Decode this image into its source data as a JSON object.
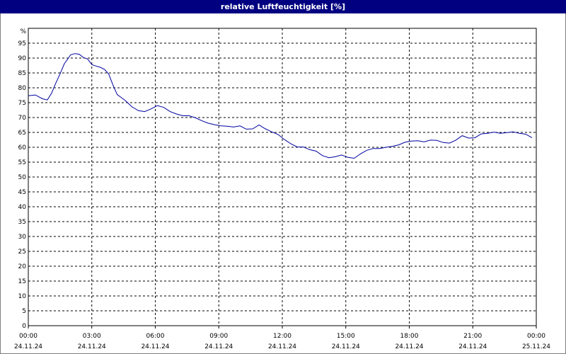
{
  "window": {
    "title": "relative Luftfeuchtigkeit [%]"
  },
  "chart_data": {
    "type": "line",
    "title": "relative Luftfeuchtigkeit [%]",
    "ylabel": "%",
    "xlabel": "",
    "ylim": [
      0,
      100
    ],
    "xlim": [
      0,
      24
    ],
    "grid": true,
    "y_ticks": [
      0,
      5,
      10,
      15,
      20,
      25,
      30,
      35,
      40,
      45,
      50,
      55,
      60,
      65,
      70,
      75,
      80,
      85,
      90,
      95
    ],
    "x_ticks": [
      {
        "x": 0,
        "time": "00:00",
        "date": "24.11.24"
      },
      {
        "x": 3,
        "time": "03:00",
        "date": "24.11.24"
      },
      {
        "x": 6,
        "time": "06:00",
        "date": "24.11.24"
      },
      {
        "x": 9,
        "time": "09:00",
        "date": "24.11.24"
      },
      {
        "x": 12,
        "time": "12:00",
        "date": "24.11.24"
      },
      {
        "x": 15,
        "time": "15:00",
        "date": "24.11.24"
      },
      {
        "x": 18,
        "time": "18:00",
        "date": "24.11.24"
      },
      {
        "x": 21,
        "time": "21:00",
        "date": "24.11.24"
      },
      {
        "x": 24,
        "time": "00:00",
        "date": "25.11.24"
      }
    ],
    "series": [
      {
        "color": "#0000a0",
        "x": [
          0,
          0.33,
          0.67,
          0.9,
          1.1,
          1.3,
          1.5,
          1.7,
          1.85,
          2.0,
          2.2,
          2.4,
          2.6,
          2.8,
          3.0,
          3.2,
          3.4,
          3.6,
          3.8,
          4.0,
          4.2,
          4.4,
          4.6,
          4.9,
          5.2,
          5.5,
          5.8,
          6.1,
          6.4,
          6.7,
          7.0,
          7.3,
          7.6,
          7.9,
          8.2,
          8.5,
          8.8,
          9.1,
          9.4,
          9.7,
          10.0,
          10.3,
          10.6,
          10.9,
          11.2,
          11.5,
          11.8,
          12.1,
          12.4,
          12.7,
          13.0,
          13.3,
          13.6,
          13.9,
          14.2,
          14.5,
          14.8,
          15.1,
          15.4,
          15.7,
          16.0,
          16.3,
          16.6,
          16.9,
          17.2,
          17.5,
          17.8,
          18.1,
          18.4,
          18.7,
          19.0,
          19.3,
          19.6,
          19.9,
          20.2,
          20.5,
          20.8,
          21.1,
          21.4,
          21.7,
          22.0,
          22.3,
          22.6,
          22.9,
          23.2,
          23.5,
          23.8
        ],
        "y": [
          77.3,
          77.6,
          76.3,
          75.9,
          78.2,
          81.6,
          84.7,
          88.1,
          89.5,
          91.1,
          91.5,
          91.3,
          90.2,
          89.7,
          87.8,
          87.3,
          86.9,
          86.2,
          84.6,
          80.9,
          77.7,
          76.7,
          75.6,
          73.6,
          72.3,
          72.0,
          72.9,
          74.0,
          73.4,
          72.0,
          71.2,
          70.6,
          70.6,
          69.9,
          68.9,
          68.1,
          67.6,
          67.2,
          67.1,
          66.8,
          67.2,
          66.1,
          66.2,
          67.5,
          66.2,
          65.2,
          64.3,
          62.6,
          61.2,
          60.1,
          60.1,
          59.2,
          58.7,
          57.2,
          56.5,
          56.8,
          57.4,
          56.6,
          56.3,
          57.8,
          59.0,
          59.6,
          59.6,
          60.0,
          60.3,
          60.8,
          61.7,
          62.1,
          62.2,
          61.8,
          62.4,
          62.3,
          61.6,
          61.4,
          62.4,
          63.9,
          63.1,
          63.2,
          64.5,
          64.7,
          65.1,
          64.7,
          64.9,
          65.2,
          64.7,
          64.4,
          63.2
        ]
      }
    ]
  }
}
